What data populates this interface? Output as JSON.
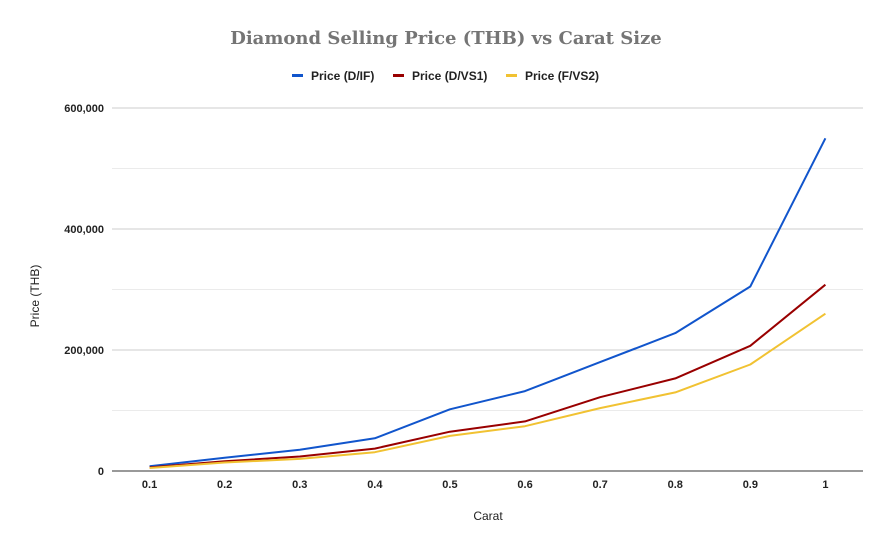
{
  "chart_data": {
    "type": "line",
    "title": "Diamond Selling Price (THB) vs Carat Size",
    "xlabel": "Carat",
    "ylabel": "Price (THB)",
    "categories": [
      "0.1",
      "0.2",
      "0.3",
      "0.4",
      "0.5",
      "0.6",
      "0.7",
      "0.8",
      "0.9",
      "1"
    ],
    "ylim": [
      0,
      600000
    ],
    "yticks": [
      0,
      200000,
      400000,
      600000
    ],
    "ytick_labels": [
      "0",
      "200,000",
      "400,000",
      "600,000"
    ],
    "grid": true,
    "legend_position": "top",
    "series": [
      {
        "name": "Price (D/IF)",
        "color": "#1155cc",
        "values": [
          8000,
          22000,
          35000,
          54000,
          102000,
          132000,
          180000,
          228000,
          305000,
          550000
        ]
      },
      {
        "name": "Price (D/VS1)",
        "color": "#990000",
        "values": [
          6000,
          16000,
          24000,
          37000,
          65000,
          82000,
          122000,
          153000,
          207000,
          308000
        ]
      },
      {
        "name": "Price (F/VS2)",
        "color": "#f1c232",
        "values": [
          5000,
          14000,
          20000,
          31000,
          58000,
          74000,
          104000,
          130000,
          176000,
          260000
        ]
      }
    ]
  }
}
